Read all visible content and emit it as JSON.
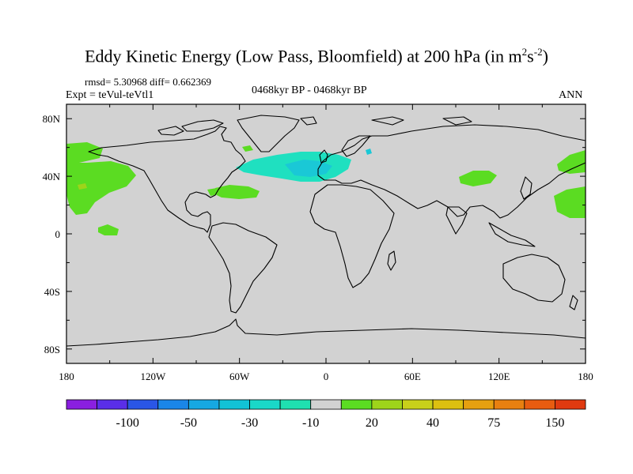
{
  "title": {
    "main": "Eddy Kinetic Energy (Low Pass, Bloomfield) at 200 hPa (in m",
    "sup1": "2",
    "mid": "s",
    "sup2": "-2",
    "end": ")"
  },
  "stats": "rmsd= 5.30968 diff= 0.662369",
  "experiment": "Expt = teVul-teVtl1",
  "period": "0468kyr BP - 0468kyr BP",
  "season": "ANN",
  "axes": {
    "lon_ticks": [
      "180",
      "120W",
      "60W",
      "0",
      "60E",
      "120E",
      "180"
    ],
    "lat_ticks": [
      "80N",
      "40N",
      "0",
      "40S",
      "80S"
    ]
  },
  "colorbar": {
    "labels": [
      "-100",
      "-50",
      "-30",
      "-10",
      "20",
      "40",
      "75",
      "150"
    ],
    "colors": [
      "#8a1fe0",
      "#5a2ee8",
      "#2a56e6",
      "#1a86e8",
      "#16a8e2",
      "#12c2d6",
      "#1ad8c8",
      "#1fe0b0",
      "#d2d2d2",
      "#5bdc22",
      "#9ed41a",
      "#c8d01a",
      "#dcc010",
      "#e6a010",
      "#e88010",
      "#e85c10",
      "#e03a10"
    ]
  },
  "map_colors": {
    "background": "#d2d2d2",
    "coast": "#000000",
    "green": "#5bdc22",
    "yellow_green": "#9ed41a",
    "turquoise": "#1fe0c0",
    "cyan": "#1ac8d6"
  }
}
